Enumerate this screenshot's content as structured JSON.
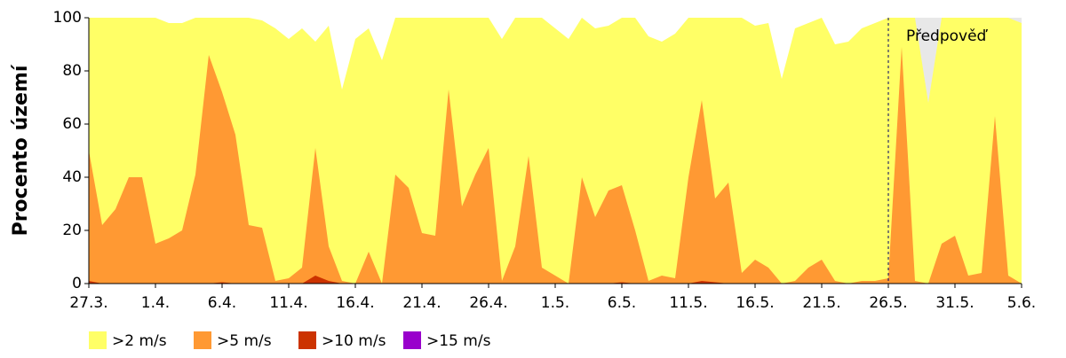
{
  "chart_data": {
    "type": "area",
    "ylabel": "Procento území",
    "annotation": "Předpověď",
    "ylim": [
      0,
      100
    ],
    "yticks": [
      0,
      20,
      40,
      60,
      80,
      100
    ],
    "categories": [
      "27.3.",
      null,
      null,
      null,
      null,
      "1.4.",
      null,
      null,
      null,
      null,
      "6.4.",
      null,
      null,
      null,
      null,
      "11.4.",
      null,
      null,
      null,
      null,
      "16.4.",
      null,
      null,
      null,
      null,
      "21.4.",
      null,
      null,
      null,
      null,
      "26.4.",
      null,
      null,
      null,
      null,
      "1.5.",
      null,
      null,
      null,
      null,
      "6.5.",
      null,
      null,
      null,
      null,
      "11.5.",
      null,
      null,
      null,
      null,
      "16.5.",
      null,
      null,
      null,
      null,
      "21.5.",
      null,
      null,
      null,
      null,
      "26.5.",
      null,
      null,
      null,
      null,
      "31.5.",
      null,
      null,
      null,
      null,
      "5.6."
    ],
    "series": [
      {
        "name": ">2 m/s",
        "color": "#ffff66",
        "values": [
          100,
          100,
          100,
          100,
          100,
          100,
          98,
          98,
          100,
          100,
          100,
          100,
          100,
          99,
          96,
          92,
          96,
          91,
          97,
          73,
          92,
          96,
          84,
          100,
          100,
          100,
          100,
          100,
          100,
          100,
          100,
          92,
          100,
          100,
          100,
          96,
          92,
          100,
          96,
          97,
          100,
          100,
          93,
          91,
          94,
          100,
          100,
          100,
          100,
          100,
          97,
          98,
          77,
          96,
          98,
          100,
          90,
          91,
          96,
          98,
          100,
          100,
          100,
          68,
          100,
          100,
          100,
          100,
          100,
          100,
          98
        ]
      },
      {
        "name": ">5 m/s",
        "color": "#ff9933",
        "values": [
          50,
          22,
          28,
          40,
          40,
          15,
          17,
          20,
          41,
          86,
          72,
          56,
          22,
          21,
          1,
          2,
          6,
          51,
          14,
          1,
          0,
          12,
          0,
          41,
          36,
          19,
          18,
          73,
          29,
          41,
          51,
          1,
          14,
          48,
          6,
          3,
          0,
          40,
          25,
          35,
          37,
          20,
          1,
          3,
          2,
          40,
          69,
          32,
          38,
          4,
          9,
          6,
          0,
          1,
          6,
          9,
          1,
          0,
          1,
          1,
          2,
          89,
          1,
          0,
          15,
          18,
          3,
          4,
          63,
          3,
          0
        ]
      },
      {
        "name": ">10 m/s",
        "color": "#cc3300",
        "values": [
          1,
          0,
          0,
          0,
          0,
          0,
          0,
          0,
          0,
          0,
          0.5,
          0,
          0,
          0,
          0,
          0,
          0,
          3,
          1,
          0,
          0,
          0,
          0,
          0,
          0,
          0,
          0,
          0,
          0,
          0,
          0,
          0,
          0,
          0,
          0,
          0,
          0,
          0,
          0,
          0,
          0.5,
          0,
          0,
          0,
          0,
          0,
          1,
          0.5,
          0,
          0,
          0,
          0,
          0,
          0,
          0,
          0,
          0,
          0,
          0,
          0,
          0,
          0,
          0,
          0,
          0,
          0,
          0,
          0,
          0,
          0,
          0
        ]
      },
      {
        "name": ">15 m/s",
        "color": "#9900cc",
        "values": [
          0,
          0,
          0,
          0,
          0,
          0,
          0,
          0,
          0,
          0,
          0,
          0,
          0,
          0,
          0,
          0,
          0,
          0,
          0,
          0,
          0,
          0,
          0,
          0,
          0,
          0,
          0,
          0,
          0,
          0,
          0,
          0,
          0,
          0,
          0,
          0,
          0,
          0,
          0,
          0,
          0,
          0,
          0,
          0,
          0,
          0,
          0,
          0,
          0,
          0,
          0,
          0,
          0,
          0,
          0,
          0,
          0,
          0,
          0,
          0,
          0,
          0,
          0,
          0,
          0,
          0,
          0,
          0,
          0,
          0,
          0
        ]
      }
    ]
  }
}
